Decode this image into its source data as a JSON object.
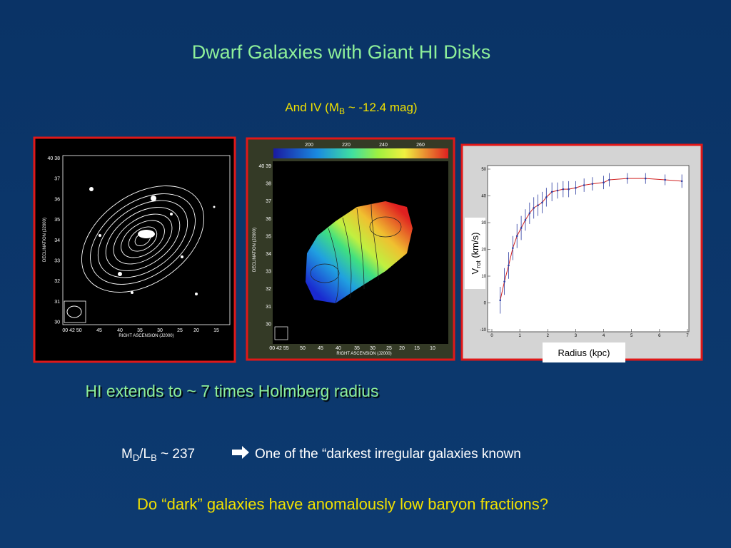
{
  "title": "Dwarf Galaxies with Giant HI Disks",
  "subtitle": [
    "And IV (M",
    "B",
    " ~ -12.4 mag)"
  ],
  "panel1": {
    "y_title": "DECLINATION (J2000)",
    "x_title": "RIGHT ASCENSION (J2000)",
    "y_labels": [
      "40 38",
      "37",
      "36",
      "35",
      "34",
      "33",
      "32",
      "31",
      "30"
    ],
    "x_labels": [
      "00 42 50",
      "45",
      "40",
      "35",
      "30",
      "25",
      "20",
      "15"
    ]
  },
  "panel2": {
    "y_title": "DECLINATION (J2000)",
    "x_title": "RIGHT ASCENSION (J2000)",
    "colorbar_labels": [
      "200",
      "220",
      "240",
      "260"
    ],
    "y_labels": [
      "40 39",
      "38",
      "37",
      "36",
      "35",
      "34",
      "33",
      "32",
      "31",
      "30"
    ],
    "x_labels": [
      "00 42 55",
      "50",
      "45",
      "40",
      "35",
      "30",
      "25",
      "20",
      "15",
      "10"
    ]
  },
  "chart_data": {
    "type": "line",
    "ylabel": [
      "V",
      "rot",
      " (km/s)"
    ],
    "xlabel": "Radius (kpc)",
    "x": [
      0.3,
      0.45,
      0.6,
      0.75,
      0.9,
      1.05,
      1.2,
      1.35,
      1.5,
      1.65,
      1.8,
      1.95,
      2.15,
      2.35,
      2.55,
      2.75,
      3.0,
      3.3,
      3.6,
      4.0,
      4.2,
      4.85,
      5.5,
      6.2,
      6.8
    ],
    "series": [
      {
        "color": "#d02020",
        "marker_color": "#2a3aa0",
        "values": [
          1,
          8,
          14,
          20.5,
          25,
          28,
          31,
          33.5,
          35.5,
          36.5,
          37.5,
          39.5,
          41.5,
          42,
          42.5,
          42.5,
          43,
          44,
          44.5,
          45,
          46,
          46.5,
          46.5,
          46,
          45.5
        ],
        "errors": [
          5,
          5,
          5,
          4.5,
          4.5,
          4.5,
          4,
          4,
          4,
          4,
          4,
          3.5,
          3.5,
          3,
          3,
          3,
          2.5,
          2.5,
          2.5,
          2.5,
          2.5,
          2,
          2,
          2,
          2.5
        ]
      }
    ],
    "xlim": [
      0,
      7
    ],
    "ylim": [
      -10,
      50
    ],
    "xticks": [
      0,
      1,
      2,
      3,
      4,
      5,
      6,
      7
    ],
    "yticks": [
      -10,
      0,
      10,
      20,
      30,
      40,
      50
    ]
  },
  "statement": "HI extends to ~ 7 times Holmberg radius",
  "ratio": [
    "M",
    "D",
    "/L",
    "B",
    " ~ 237",
    "One of the “darkest irregular galaxies known"
  ],
  "question": "Do “dark” galaxies have anomalously low baryon fractions?"
}
